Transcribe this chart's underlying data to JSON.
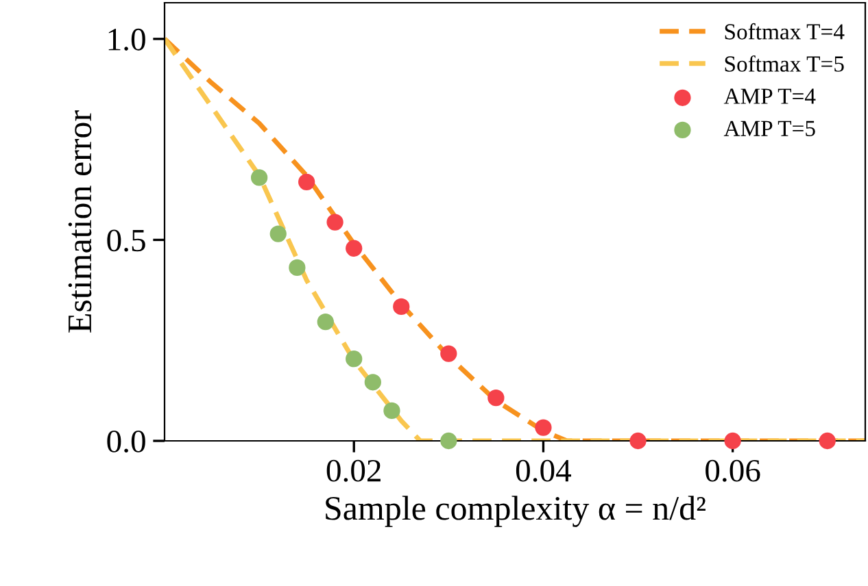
{
  "chart_data": {
    "type": "line",
    "xlabel": "Sample complexity α = n/d²",
    "ylabel": "Estimation error",
    "xlim": [
      0,
      0.074
    ],
    "ylim": [
      0,
      1.09
    ],
    "xticks": [
      0.02,
      0.04,
      0.06
    ],
    "yticks": [
      {
        "value": 0,
        "label": "0.0"
      },
      {
        "value": 0.5,
        "label": "0.5"
      },
      {
        "value": 1,
        "label": "1.0"
      }
    ],
    "legend": "top right",
    "grid": false,
    "series": [
      {
        "name": "Softmax T=4",
        "line_style": "dashed",
        "color": "#f7921e",
        "x": [
          0,
          0.005,
          0.01,
          0.015,
          0.02,
          0.025,
          0.03,
          0.035,
          0.04,
          0.0425,
          0.074
        ],
        "values": [
          1,
          0.89,
          0.79,
          0.66,
          0.49,
          0.34,
          0.21,
          0.1,
          0.025,
          0,
          0
        ]
      },
      {
        "name": "Softmax T=5",
        "line_style": "dashed",
        "color": "#f9c64f",
        "x": [
          0,
          0.005,
          0.01,
          0.015,
          0.02,
          0.025,
          0.027,
          0.074
        ],
        "values": [
          1,
          0.83,
          0.66,
          0.4,
          0.2,
          0.05,
          0,
          0
        ]
      },
      {
        "name": "AMP T=4",
        "type": "scatter",
        "marker": "circle",
        "color": "#f5424a",
        "x": [
          0.015,
          0.018,
          0.02,
          0.025,
          0.03,
          0.035,
          0.04,
          0.05,
          0.06,
          0.07
        ],
        "values": [
          0.644,
          0.544,
          0.479,
          0.334,
          0.217,
          0.107,
          0.033,
          0,
          0,
          0
        ]
      },
      {
        "name": "AMP T=5",
        "type": "scatter",
        "marker": "circle",
        "color": "#8fbc6a",
        "x": [
          0.01,
          0.012,
          0.014,
          0.017,
          0.02,
          0.022,
          0.024,
          0.03
        ],
        "values": [
          0.655,
          0.515,
          0.431,
          0.296,
          0.204,
          0.146,
          0.075,
          0
        ]
      }
    ]
  }
}
